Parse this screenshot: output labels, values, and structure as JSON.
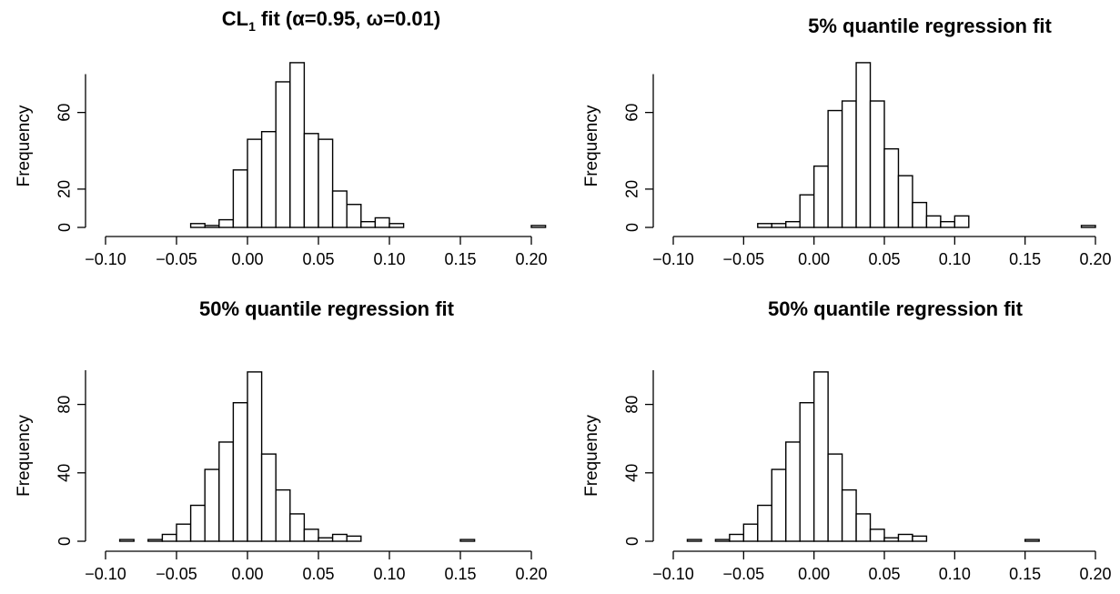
{
  "chart_data": [
    {
      "type": "bar",
      "title_main": "CL",
      "title_sub": "1",
      "title_rest": " fit (α=0.95, ω=0.01)",
      "ylabel": "Frequency",
      "xlim": [
        -0.1,
        0.21
      ],
      "ylim": [
        0,
        85
      ],
      "xticks": [
        -0.1,
        -0.05,
        0.0,
        0.05,
        0.1,
        0.15,
        0.2
      ],
      "xtick_labels": [
        "−0.10",
        "−0.05",
        "0.00",
        "0.05",
        "0.10",
        "0.15",
        "0.20"
      ],
      "yticks": [
        0,
        20,
        60
      ],
      "ytick_labels": [
        "0",
        "20",
        "60"
      ],
      "bin_start": -0.04,
      "bin_width": 0.01,
      "values": [
        2,
        1,
        4,
        30,
        46,
        50,
        76,
        86,
        49,
        46,
        19,
        12,
        3,
        5,
        2,
        0,
        0,
        0,
        0,
        0,
        0,
        0,
        0,
        0,
        1
      ]
    },
    {
      "type": "bar",
      "title_main": "5% quantile regression fit",
      "title_sub": "",
      "title_rest": "",
      "ylabel": "Frequency",
      "xlim": [
        -0.1,
        0.2
      ],
      "ylim": [
        0,
        85
      ],
      "xticks": [
        -0.1,
        -0.05,
        0.0,
        0.05,
        0.1,
        0.15,
        0.2
      ],
      "xtick_labels": [
        "−0.10",
        "−0.05",
        "0.00",
        "0.05",
        "0.10",
        "0.15",
        "0.20"
      ],
      "yticks": [
        0,
        20,
        60
      ],
      "ytick_labels": [
        "0",
        "20",
        "60"
      ],
      "bin_start": -0.04,
      "bin_width": 0.01,
      "values": [
        2,
        2,
        3,
        17,
        32,
        61,
        66,
        86,
        66,
        41,
        27,
        13,
        6,
        3,
        6,
        0,
        0,
        0,
        0,
        0,
        0,
        0,
        0,
        1
      ]
    },
    {
      "type": "bar",
      "title_main": "50% quantile regression fit",
      "title_sub": "",
      "title_rest": "",
      "ylabel": "Frequency",
      "xlim": [
        -0.1,
        0.2
      ],
      "ylim": [
        0,
        100
      ],
      "xticks": [
        -0.1,
        -0.05,
        0.0,
        0.05,
        0.1,
        0.15,
        0.2
      ],
      "xtick_labels": [
        "−0.10",
        "−0.05",
        "0.00",
        "0.05",
        "0.10",
        "0.15",
        "0.20"
      ],
      "yticks": [
        0,
        40,
        80
      ],
      "ytick_labels": [
        "0",
        "40",
        "80"
      ],
      "bin_start": -0.09,
      "bin_width": 0.01,
      "values": [
        1,
        0,
        1,
        4,
        10,
        21,
        42,
        58,
        81,
        99,
        51,
        30,
        16,
        7,
        2,
        4,
        3,
        0,
        0,
        0,
        0,
        0,
        0,
        0,
        1
      ]
    },
    {
      "type": "bar",
      "title_main": "50% quantile regression fit",
      "title_sub": "",
      "title_rest": "",
      "ylabel": "Frequency",
      "xlim": [
        -0.1,
        0.2
      ],
      "ylim": [
        0,
        100
      ],
      "xticks": [
        -0.1,
        -0.05,
        0.0,
        0.05,
        0.1,
        0.15,
        0.2
      ],
      "xtick_labels": [
        "−0.10",
        "−0.05",
        "0.00",
        "0.05",
        "0.10",
        "0.15",
        "0.20"
      ],
      "yticks": [
        0,
        40,
        80
      ],
      "ytick_labels": [
        "0",
        "40",
        "80"
      ],
      "bin_start": -0.09,
      "bin_width": 0.01,
      "values": [
        1,
        0,
        1,
        4,
        10,
        21,
        42,
        58,
        81,
        99,
        51,
        30,
        16,
        7,
        2,
        4,
        3,
        0,
        0,
        0,
        0,
        0,
        0,
        0,
        1
      ]
    }
  ]
}
